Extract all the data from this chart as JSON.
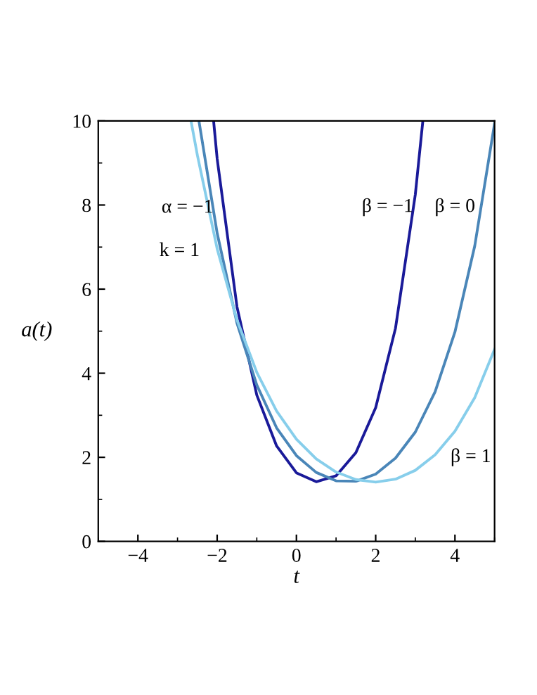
{
  "chart_data": {
    "type": "line",
    "xlabel": "t",
    "ylabel": "a(t)",
    "xlim": [
      -5,
      5
    ],
    "ylim": [
      0,
      10
    ],
    "xticks": [
      -4,
      -2,
      0,
      2,
      4
    ],
    "yticks": [
      0,
      2,
      4,
      6,
      8,
      10
    ],
    "grid": false,
    "legend": false,
    "marker": "none",
    "line_style": "solid",
    "series": [
      {
        "color": "#1a1a99",
        "x": [
          -2.09,
          -2,
          -1.5,
          -1,
          -0.5,
          0,
          0.5,
          1,
          1.5,
          2,
          2.5,
          3,
          3.19
        ],
        "values": [
          10.0,
          9.1,
          5.58,
          3.48,
          2.27,
          1.63,
          1.42,
          1.56,
          2.11,
          3.18,
          5.07,
          8.25,
          10.0
        ]
      },
      {
        "color": "#4a86b8",
        "x": [
          -2.46,
          -2,
          -1.5,
          -1,
          -0.5,
          0,
          0.5,
          1,
          1.5,
          2,
          2.5,
          3,
          3.5,
          4,
          4.5,
          5
        ],
        "values": [
          10.0,
          7.33,
          5.19,
          3.72,
          2.7,
          2.04,
          1.64,
          1.44,
          1.43,
          1.6,
          1.98,
          2.6,
          3.56,
          4.98,
          7.03,
          9.94
        ]
      },
      {
        "color": "#87ceeb",
        "x": [
          -2.66,
          -2.5,
          -2,
          -1.5,
          -1,
          -0.5,
          0,
          0.5,
          1,
          1.5,
          2,
          2.5,
          3,
          3.5,
          4,
          4.5,
          5
        ],
        "values": [
          10.0,
          9.19,
          6.96,
          5.27,
          4.02,
          3.1,
          2.43,
          1.96,
          1.65,
          1.47,
          1.41,
          1.48,
          1.69,
          2.06,
          2.62,
          3.42,
          4.57
        ]
      }
    ],
    "annotations": [
      "α = −1",
      "k = 1",
      "β = −1",
      "β = 0",
      "β = 1"
    ]
  }
}
